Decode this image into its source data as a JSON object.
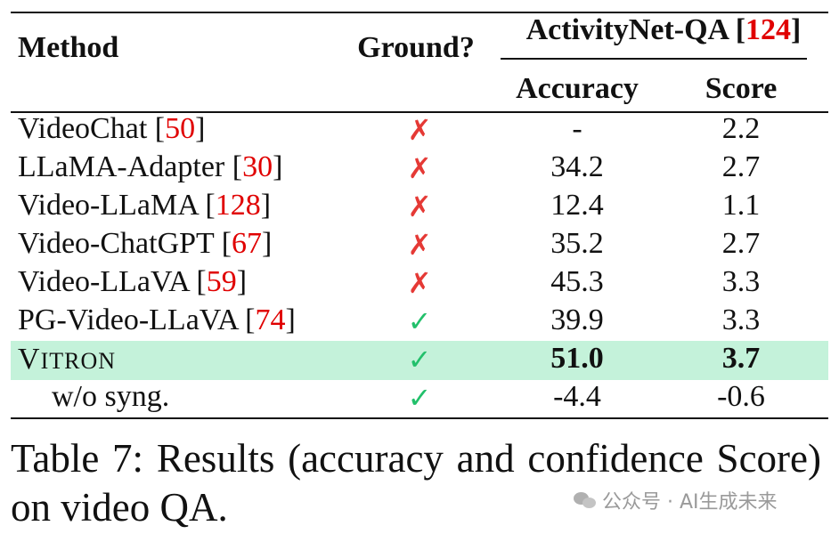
{
  "table": {
    "col_method": "Method",
    "col_ground": "Ground?",
    "group_name": "ActivityNet-QA",
    "group_ref": "124",
    "col_accuracy": "Accuracy",
    "col_score": "Score",
    "rows": [
      {
        "method": "VideoChat",
        "ref": "50",
        "ground": "cross",
        "accuracy": "-",
        "score": "2.2"
      },
      {
        "method": "LLaMA-Adapter",
        "ref": "30",
        "ground": "cross",
        "accuracy": "34.2",
        "score": "2.7"
      },
      {
        "method": "Video-LLaMA",
        "ref": "128",
        "ground": "cross",
        "accuracy": "12.4",
        "score": "1.1"
      },
      {
        "method": "Video-ChatGPT",
        "ref": "67",
        "ground": "cross",
        "accuracy": "35.2",
        "score": "2.7"
      },
      {
        "method": "Video-LLaVA",
        "ref": "59",
        "ground": "cross",
        "accuracy": "45.3",
        "score": "3.3"
      },
      {
        "method": "PG-Video-LLaVA",
        "ref": "74",
        "ground": "check",
        "accuracy": "39.9",
        "score": "3.3"
      },
      {
        "method_first": "V",
        "method_rest": "ITRON",
        "ground": "check",
        "accuracy": "51.0",
        "score": "3.7",
        "highlight": true
      },
      {
        "method": "w/o syng.",
        "ground": "check",
        "accuracy": "-4.4",
        "score": "-0.6"
      }
    ],
    "cross_symbol": "✗",
    "check_symbol": "✓",
    "highlight_color": "#c4f2da"
  },
  "caption": "Table 7:   Results (accuracy and confidence Score) on video QA.",
  "watermark": "公众号 · AI生成未来"
}
